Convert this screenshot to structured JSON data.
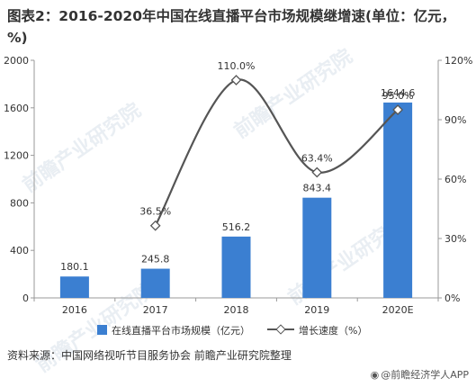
{
  "title": "图表2：2016-2020年中国在线直播平台市场规模继增速(单位：亿元，%)",
  "source": "资料来源：中国网络视听节目服务协会 前瞻产业研究院整理",
  "brand": "@前瞻经济学人APP",
  "watermark": "前瞻产业研究院",
  "chart_data": {
    "type": "bar+line",
    "categories": [
      "2016",
      "2017",
      "2018",
      "2019",
      "2020E"
    ],
    "series": [
      {
        "name": "在线直播平台市场规模（亿元）",
        "type": "bar",
        "axis": "left",
        "color": "#3b7fd1",
        "values": [
          180.1,
          245.8,
          516.2,
          843.4,
          1644.6
        ],
        "labels": [
          "180.1",
          "245.8",
          "516.2",
          "843.4",
          "1644.6"
        ]
      },
      {
        "name": "增长速度（%）",
        "type": "line",
        "axis": "right",
        "color": "#555555",
        "values": [
          null,
          36.5,
          110.0,
          63.4,
          95.0
        ],
        "labels": [
          "",
          "36.5%",
          "110.0%",
          "63.4%",
          "95.0%"
        ]
      }
    ],
    "y_left": {
      "min": 0,
      "max": 2000,
      "ticks": [
        "0",
        "400",
        "800",
        "1200",
        "1600",
        "2000"
      ]
    },
    "y_right": {
      "min": 0,
      "max": 120,
      "ticks": [
        "0%",
        "30%",
        "60%",
        "90%",
        "120%"
      ]
    },
    "grid": false,
    "legend_position": "bottom"
  }
}
